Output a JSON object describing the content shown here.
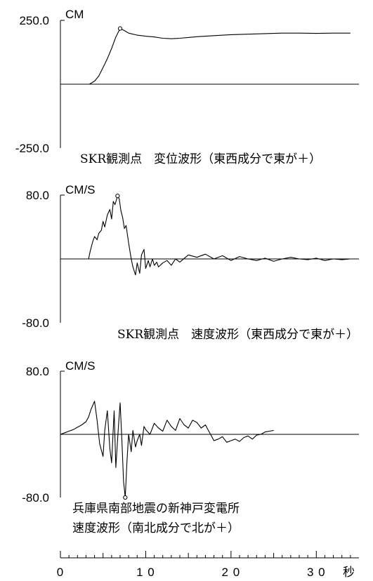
{
  "chart_data": [
    {
      "type": "line",
      "unit": "CM",
      "ylim": [
        -250.0,
        250.0
      ],
      "ytick_labels": [
        "250.0",
        "-250.0"
      ],
      "caption": [
        "SKR観測点　変位波形（東西成分で東が＋）"
      ],
      "peak_marker": {
        "x": 7.0,
        "y": 218
      },
      "series": [
        {
          "x": [
            0,
            2,
            3.4,
            4,
            4.5,
            5,
            5.5,
            6,
            6.5,
            7,
            7.5,
            8,
            9,
            10,
            11,
            12,
            13,
            14,
            15,
            16,
            18,
            20,
            22,
            24,
            26,
            28,
            30,
            32,
            34
          ],
          "y": [
            0,
            0,
            0,
            12,
            32,
            65,
            100,
            140,
            185,
            218,
            210,
            200,
            192,
            188,
            185,
            180,
            178,
            180,
            183,
            186,
            190,
            194,
            196,
            198,
            200,
            200,
            199,
            200,
            200
          ]
        }
      ]
    },
    {
      "type": "line",
      "unit": "CM/S",
      "ylim": [
        -80.0,
        80.0
      ],
      "ytick_labels": [
        "80.0",
        "-80.0"
      ],
      "caption": [
        "SKR観測点　速度波形（東西成分で東が＋）"
      ],
      "peak_marker": {
        "x": 6.7,
        "y": 79
      },
      "series": [
        {
          "x": [
            0,
            2,
            3.3,
            3.5,
            3.8,
            4.0,
            4.3,
            4.5,
            4.8,
            5.0,
            5.2,
            5.5,
            5.8,
            6.0,
            6.2,
            6.4,
            6.7,
            6.9,
            7.1,
            7.3,
            7.5,
            7.7,
            8.0,
            8.3,
            8.5,
            8.8,
            9.0,
            9.3,
            9.5,
            9.8,
            10.0,
            10.3,
            10.5,
            10.8,
            11.0,
            11.3,
            11.5,
            12.0,
            12.5,
            13.0,
            13.5,
            14.0,
            15.0,
            16.0,
            17.0,
            18.0,
            19.0,
            20.0,
            21.0,
            22.0,
            23.0,
            24.0,
            25.0,
            26.0,
            27.0,
            28.0,
            29.0,
            30.0,
            31.0,
            32.0,
            33.0,
            34.0
          ],
          "y": [
            0,
            0,
            0,
            10,
            22,
            28,
            24,
            32,
            36,
            47,
            40,
            55,
            62,
            50,
            72,
            68,
            79,
            75,
            60,
            52,
            38,
            42,
            20,
            0,
            -10,
            -20,
            -5,
            -18,
            5,
            12,
            -12,
            -2,
            -10,
            0,
            -8,
            -4,
            -10,
            -5,
            -2,
            -8,
            0,
            -4,
            5,
            2,
            6,
            0,
            4,
            -2,
            3,
            0,
            -2,
            1,
            -3,
            0,
            2,
            0,
            -1,
            1,
            -2,
            0,
            -1,
            0
          ]
        }
      ]
    },
    {
      "type": "line",
      "unit": "CM/S",
      "ylim": [
        -80.0,
        80.0
      ],
      "ytick_labels": [
        "80.0",
        "-80.0"
      ],
      "caption": [
        "兵庫県南部地震の新神戸変電所",
        "速度波形（南北成分で北が＋）"
      ],
      "peak_marker": {
        "x": 7.6,
        "y": -80
      },
      "series": [
        {
          "x": [
            0,
            0.5,
            1.0,
            1.5,
            2.0,
            2.5,
            3.0,
            3.3,
            3.6,
            4.0,
            4.3,
            4.6,
            5.0,
            5.2,
            5.5,
            5.8,
            6.0,
            6.3,
            6.5,
            6.8,
            7.0,
            7.2,
            7.4,
            7.6,
            7.8,
            8.0,
            8.3,
            8.5,
            8.8,
            9.0,
            9.3,
            9.5,
            9.8,
            10.0,
            10.5,
            11.0,
            11.5,
            12.0,
            12.5,
            13.0,
            13.5,
            14.0,
            14.5,
            15.0,
            15.5,
            16.0,
            16.5,
            17.0,
            17.5,
            18.0,
            18.5,
            19.0,
            19.5,
            20.0,
            20.5,
            21.0,
            21.5,
            22.0,
            22.5,
            23.0,
            23.5,
            24.0,
            24.5,
            25.0
          ],
          "y": [
            0,
            2,
            4,
            6,
            9,
            12,
            16,
            22,
            32,
            42,
            18,
            -12,
            -28,
            5,
            30,
            -18,
            -36,
            30,
            -42,
            10,
            40,
            -5,
            -60,
            -80,
            -35,
            0,
            -22,
            5,
            -16,
            -8,
            0,
            -14,
            10,
            6,
            0,
            14,
            8,
            4,
            18,
            10,
            5,
            20,
            12,
            8,
            18,
            15,
            8,
            12,
            2,
            -8,
            -6,
            -3,
            -10,
            -8,
            -6,
            -9,
            -4,
            -2,
            -6,
            -1,
            0,
            3,
            4,
            5
          ]
        }
      ]
    }
  ],
  "x_axis": {
    "range": [
      0,
      35
    ],
    "tick_labels": [
      {
        "x": 0,
        "label": "0"
      },
      {
        "x": 10,
        "label": "1 0"
      },
      {
        "x": 20,
        "label": "2 0"
      },
      {
        "x": 30,
        "label": "3 0"
      }
    ],
    "unit_label": "秒"
  }
}
